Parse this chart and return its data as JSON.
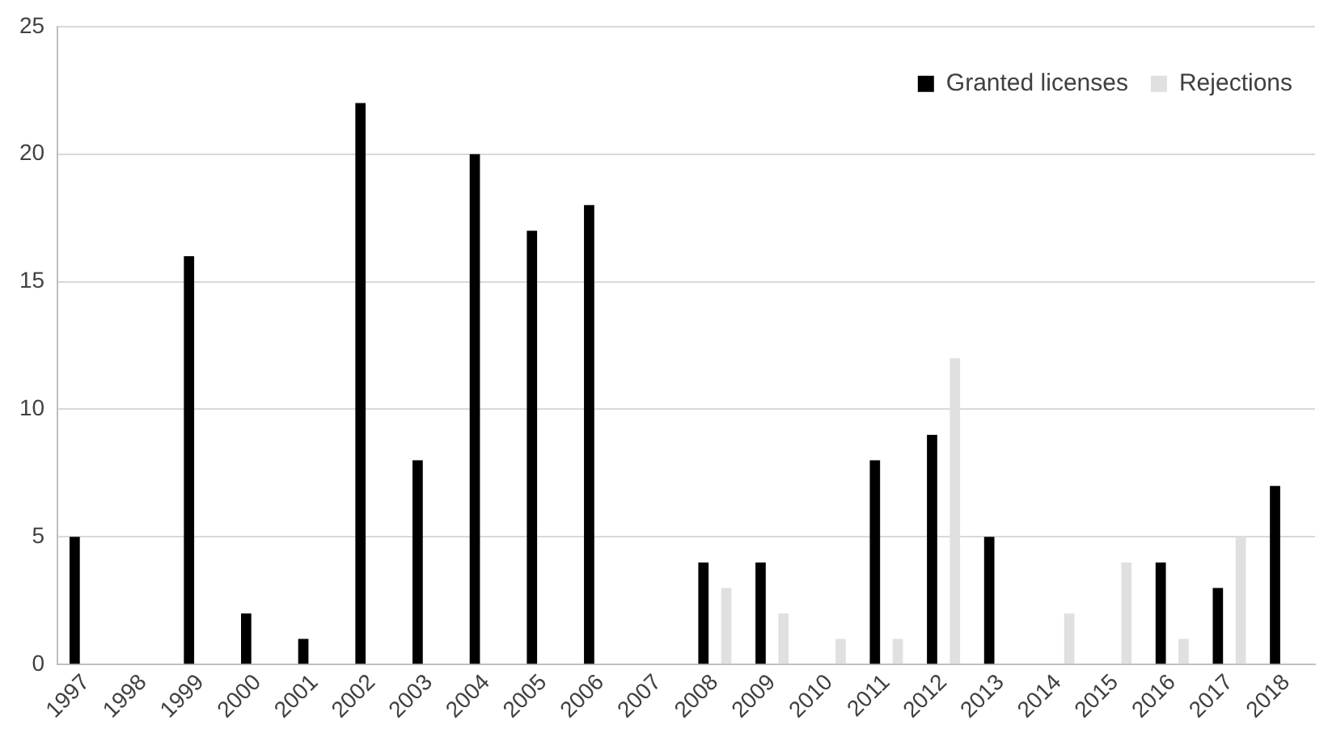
{
  "chart_data": {
    "type": "bar",
    "categories": [
      "1997",
      "1998",
      "1999",
      "2000",
      "2001",
      "2002",
      "2003",
      "2004",
      "2005",
      "2006",
      "2007",
      "2008",
      "2009",
      "2010",
      "2011",
      "2012",
      "2013",
      "2014",
      "2015",
      "2016",
      "2017",
      "2018"
    ],
    "series": [
      {
        "name": "Granted licenses",
        "color": "#000000",
        "values": [
          5,
          0,
          16,
          2,
          1,
          22,
          8,
          20,
          17,
          18,
          0,
          4,
          4,
          0,
          8,
          9,
          5,
          0,
          0,
          4,
          3,
          7
        ]
      },
      {
        "name": "Rejections",
        "color": "#e0e0e0",
        "values": [
          0,
          0,
          0,
          0,
          0,
          0,
          0,
          0,
          0,
          0,
          0,
          3,
          2,
          1,
          1,
          12,
          0,
          2,
          4,
          1,
          5,
          0
        ]
      }
    ],
    "ylim": [
      0,
      25
    ],
    "yticks": [
      0,
      5,
      10,
      15,
      20,
      25
    ],
    "grid": "y",
    "legend": "top right"
  }
}
